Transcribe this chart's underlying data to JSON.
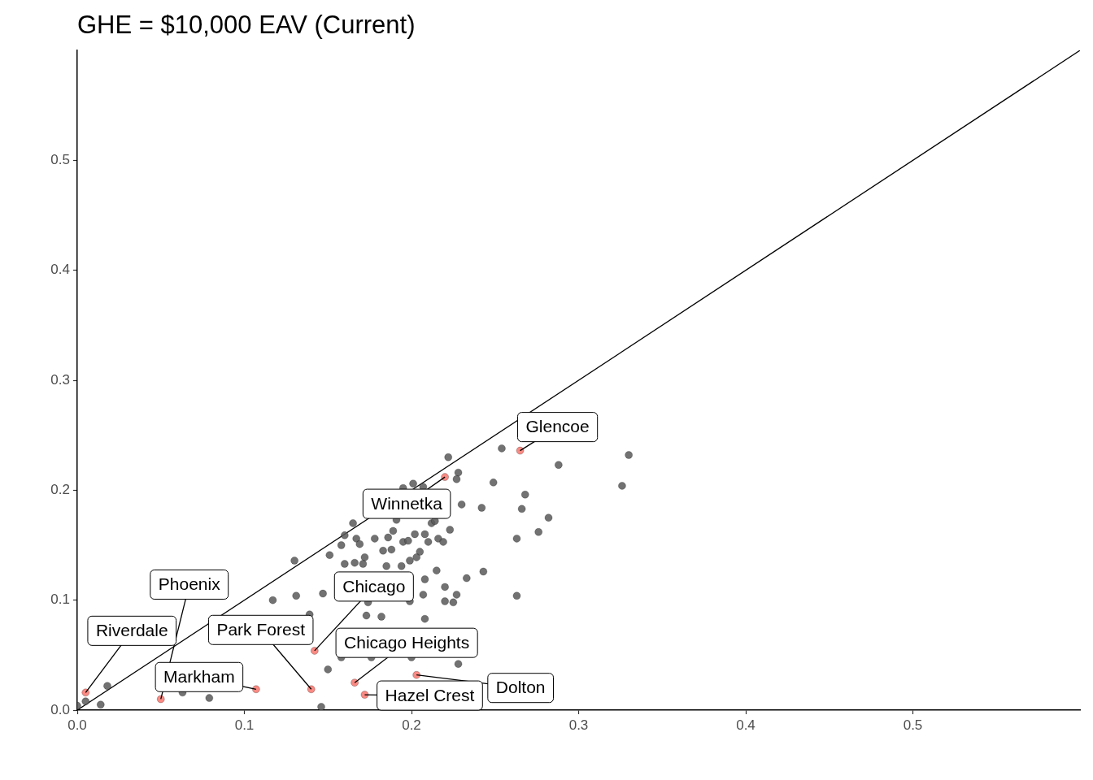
{
  "chart_data": {
    "type": "scatter",
    "title": "GHE = $10,000 EAV (Current)",
    "xlim": [
      0,
      0.6
    ],
    "ylim": [
      0,
      0.6
    ],
    "xticks": [
      {
        "value": 0,
        "label": "0.0"
      },
      0.1,
      0.2,
      0.3,
      0.4,
      0.5
    ],
    "yticks": [
      {
        "value": 0,
        "label": "0.0"
      },
      0.1,
      0.2,
      0.3,
      0.4,
      0.5
    ],
    "grid": false,
    "legend": false,
    "marker": "circle",
    "series": [
      {
        "type": "line",
        "color": "#000000",
        "marker": "none",
        "x": [
          0,
          0.6
        ],
        "values": [
          0,
          0.6
        ]
      },
      {
        "color": "#595959",
        "x": [
          0.0,
          0.005,
          0.014,
          0.018,
          0.063,
          0.079,
          0.117,
          0.13,
          0.131,
          0.147,
          0.151,
          0.139,
          0.15,
          0.146,
          0.158,
          0.16,
          0.165,
          0.167,
          0.169,
          0.178,
          0.186,
          0.189,
          0.191,
          0.195,
          0.198,
          0.202,
          0.208,
          0.21,
          0.216,
          0.219,
          0.212,
          0.214,
          0.223,
          0.201,
          0.222,
          0.228,
          0.227,
          0.23,
          0.242,
          0.254,
          0.249,
          0.288,
          0.33,
          0.326,
          0.268,
          0.266,
          0.282,
          0.276,
          0.263,
          0.172,
          0.183,
          0.188,
          0.205,
          0.203,
          0.199,
          0.166,
          0.171,
          0.16,
          0.185,
          0.194,
          0.215,
          0.208,
          0.22,
          0.233,
          0.243,
          0.227,
          0.22,
          0.225,
          0.199,
          0.207,
          0.263,
          0.174,
          0.173,
          0.182,
          0.208,
          0.228,
          0.2,
          0.158,
          0.176,
          0.195,
          0.207
        ],
        "values": [
          0.004,
          0.008,
          0.005,
          0.022,
          0.016,
          0.011,
          0.1,
          0.136,
          0.104,
          0.106,
          0.141,
          0.087,
          0.037,
          0.003,
          0.15,
          0.159,
          0.17,
          0.156,
          0.151,
          0.156,
          0.157,
          0.163,
          0.173,
          0.153,
          0.154,
          0.16,
          0.16,
          0.153,
          0.156,
          0.153,
          0.17,
          0.172,
          0.164,
          0.206,
          0.23,
          0.216,
          0.21,
          0.187,
          0.184,
          0.238,
          0.207,
          0.223,
          0.232,
          0.204,
          0.196,
          0.183,
          0.175,
          0.162,
          0.156,
          0.139,
          0.145,
          0.146,
          0.144,
          0.139,
          0.136,
          0.134,
          0.133,
          0.133,
          0.131,
          0.131,
          0.127,
          0.119,
          0.112,
          0.12,
          0.126,
          0.105,
          0.099,
          0.098,
          0.099,
          0.105,
          0.104,
          0.098,
          0.086,
          0.085,
          0.083,
          0.042,
          0.048,
          0.048,
          0.048,
          0.202,
          0.203
        ]
      },
      {
        "color": "#f8766d",
        "x": [
          0.005,
          0.05,
          0.107,
          0.14,
          0.142,
          0.166,
          0.172,
          0.203,
          0.22,
          0.265
        ],
        "values": [
          0.016,
          0.01,
          0.019,
          0.019,
          0.054,
          0.025,
          0.014,
          0.032,
          0.212,
          0.236
        ]
      }
    ],
    "annotations": [
      {
        "text": "Riverdale",
        "x": 0.005,
        "y": 0.016
      },
      {
        "text": "Phoenix",
        "x": 0.05,
        "y": 0.01
      },
      {
        "text": "Markham",
        "x": 0.107,
        "y": 0.019
      },
      {
        "text": "Park Forest",
        "x": 0.14,
        "y": 0.019
      },
      {
        "text": "Chicago",
        "x": 0.142,
        "y": 0.054
      },
      {
        "text": "Chicago Heights",
        "x": 0.166,
        "y": 0.025
      },
      {
        "text": "Hazel Crest",
        "x": 0.172,
        "y": 0.014
      },
      {
        "text": "Dolton",
        "x": 0.203,
        "y": 0.032
      },
      {
        "text": "Winnetka",
        "x": 0.22,
        "y": 0.212
      },
      {
        "text": "Glencoe",
        "x": 0.265,
        "y": 0.236
      }
    ]
  }
}
